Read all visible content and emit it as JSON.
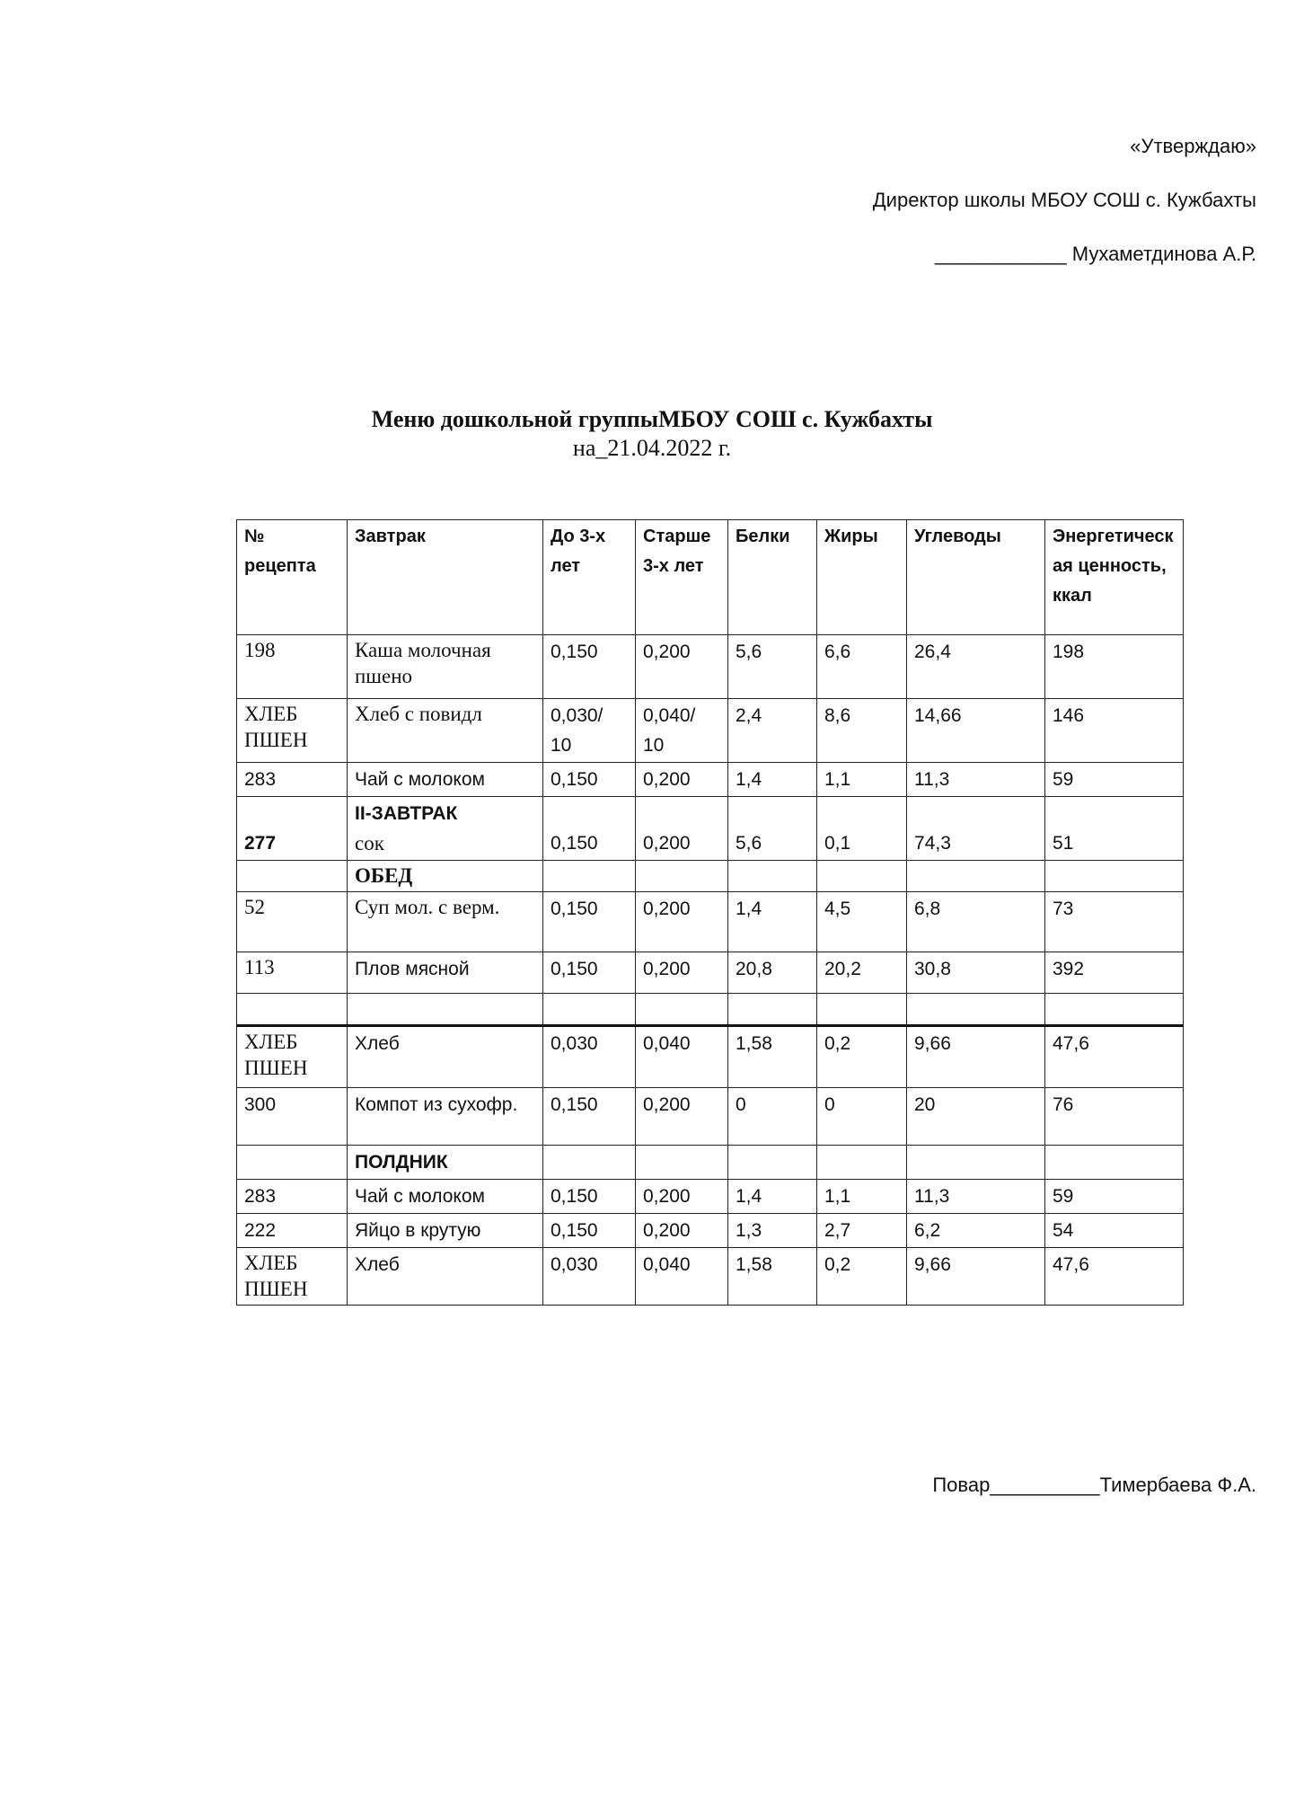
{
  "approval": {
    "line1": "«Утверждаю»",
    "line2": "Директор школы МБОУ СОШ с. Кужбахты",
    "line3": "____________ Мухаметдинова А.Р."
  },
  "title": "Меню дошкольной группыМБОУ СОШ с. Кужбахты",
  "date": "на_21.04.2022 г.",
  "table": {
    "columns": [
      "№ рецепта",
      "Завтрак",
      "До 3-х лет",
      "Старше 3-х лет",
      "Белки",
      "Жиры",
      "Углеводы",
      "Энергетическая ценность, ккал"
    ],
    "rows": [
      [
        "198",
        "Каша молочная пшено",
        "0,150",
        "0,200",
        "5,6",
        "6,6",
        "26,4",
        "198"
      ],
      [
        "ХЛЕБ ПШЕН",
        "Хлеб с повидл",
        "0,030/ 10",
        "0,040/ 10",
        "2,4",
        "8,6",
        "14,66",
        "146"
      ],
      [
        "283",
        "Чай с молоком",
        "0,150",
        "0,200",
        "1,4",
        "1,1",
        "11,3",
        "59"
      ],
      [
        "277",
        [
          "II-ЗАВТРАК",
          "сок"
        ],
        "0,150",
        "0,200",
        "5,6",
        "0,1",
        "74,3",
        "51"
      ],
      [
        null,
        "ОБЕД",
        null,
        null,
        null,
        null,
        null,
        null
      ],
      [
        "52",
        "Суп мол. с верм.",
        "0,150",
        "0,200",
        "1,4",
        "4,5",
        "6,8",
        "73"
      ],
      [
        "113",
        "Плов мясной",
        "0,150",
        "0,200",
        "20,8",
        "20,2",
        "30,8",
        "392"
      ],
      [
        null,
        null,
        null,
        null,
        null,
        null,
        null,
        null
      ],
      [
        "ХЛЕБ ПШЕН",
        "Хлеб",
        "0,030",
        "0,040",
        "1,58",
        "0,2",
        "9,66",
        "47,6"
      ],
      [
        "300",
        "Компот из сухофр.",
        "0,150",
        "0,200",
        "0",
        "0",
        "20",
        "76"
      ],
      [
        null,
        "ПОЛДНИК",
        null,
        null,
        null,
        null,
        null,
        null
      ],
      [
        "283",
        "Чай с молоком",
        "0,150",
        "0,200",
        "1,4",
        "1,1",
        "11,3",
        "59"
      ],
      [
        "222",
        "Яйцо в крутую",
        "0,150",
        "0,200",
        "1,3",
        "2,7",
        "6,2",
        "54"
      ],
      [
        "ХЛЕБ ПШЕН",
        "Хлеб",
        "0,030",
        "0,040",
        "1,58",
        "0,2",
        "9,66",
        "47,6"
      ]
    ]
  },
  "footer": "Повар__________Тимербаева Ф.А."
}
